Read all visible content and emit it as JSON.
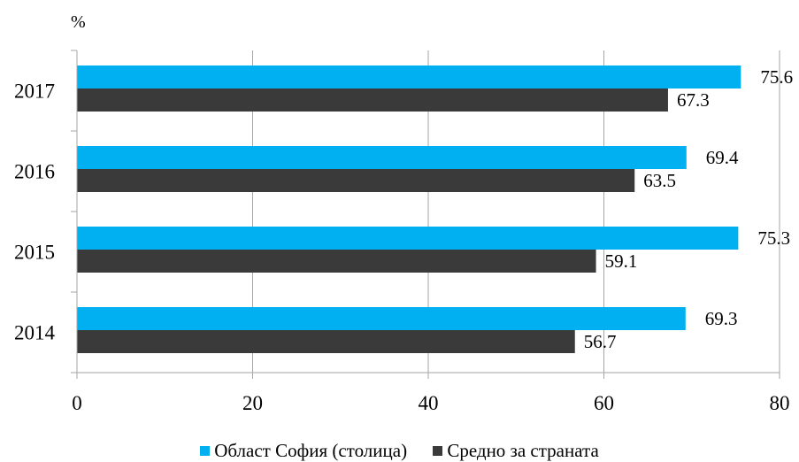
{
  "chart_data": {
    "type": "bar",
    "orientation": "horizontal",
    "unit_label": "%",
    "categories": [
      "2017",
      "2016",
      "2015",
      "2014"
    ],
    "series": [
      {
        "name": "Област София (столица)",
        "color": "#00b0f0",
        "values": [
          75.6,
          69.4,
          75.3,
          69.3
        ]
      },
      {
        "name": "Средно за страната",
        "color": "#3a3a3a",
        "values": [
          67.3,
          63.5,
          59.1,
          56.7
        ]
      }
    ],
    "data_labels": {
      "s0": [
        "75.6",
        "69.4",
        "75.3",
        "69.3"
      ],
      "s1": [
        "67.3",
        "63.5",
        "59.1",
        "56.7"
      ]
    },
    "xlim": [
      0,
      80
    ],
    "xticks": [
      0,
      20,
      40,
      60,
      80
    ],
    "xtick_labels": [
      "0",
      "20",
      "40",
      "60",
      "80"
    ],
    "grid": true,
    "legend_position": "bottom"
  }
}
